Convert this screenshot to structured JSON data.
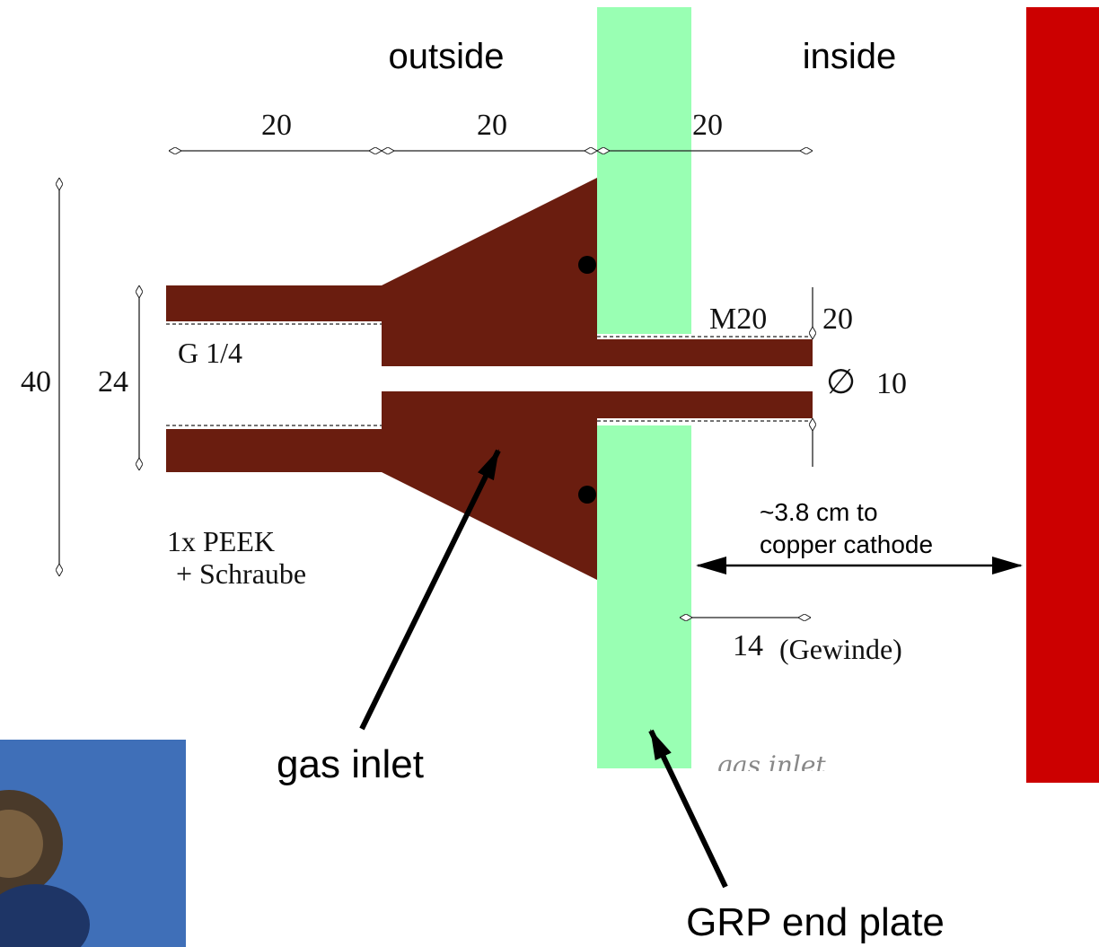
{
  "regions": {
    "outside": "outside",
    "inside": "inside"
  },
  "dimensions": {
    "top": [
      "20",
      "20",
      "20"
    ],
    "height_outer": "40",
    "height_inner": "24",
    "thread": "G 1/4",
    "metric_thread": "M20",
    "metric_depth": "20",
    "bore_symbol": "∅",
    "bore": "10",
    "thread_length": "14",
    "thread_length_note": "(Gewinde)"
  },
  "part_note": [
    "1x PEEK",
    "+ Schraube"
  ],
  "distance_note": [
    "~3.8 cm to",
    "copper cathode"
  ],
  "callouts": {
    "gas_inlet": "gas inlet",
    "end_plate": "GRP end plate",
    "handwritten": "gas inlet"
  }
}
